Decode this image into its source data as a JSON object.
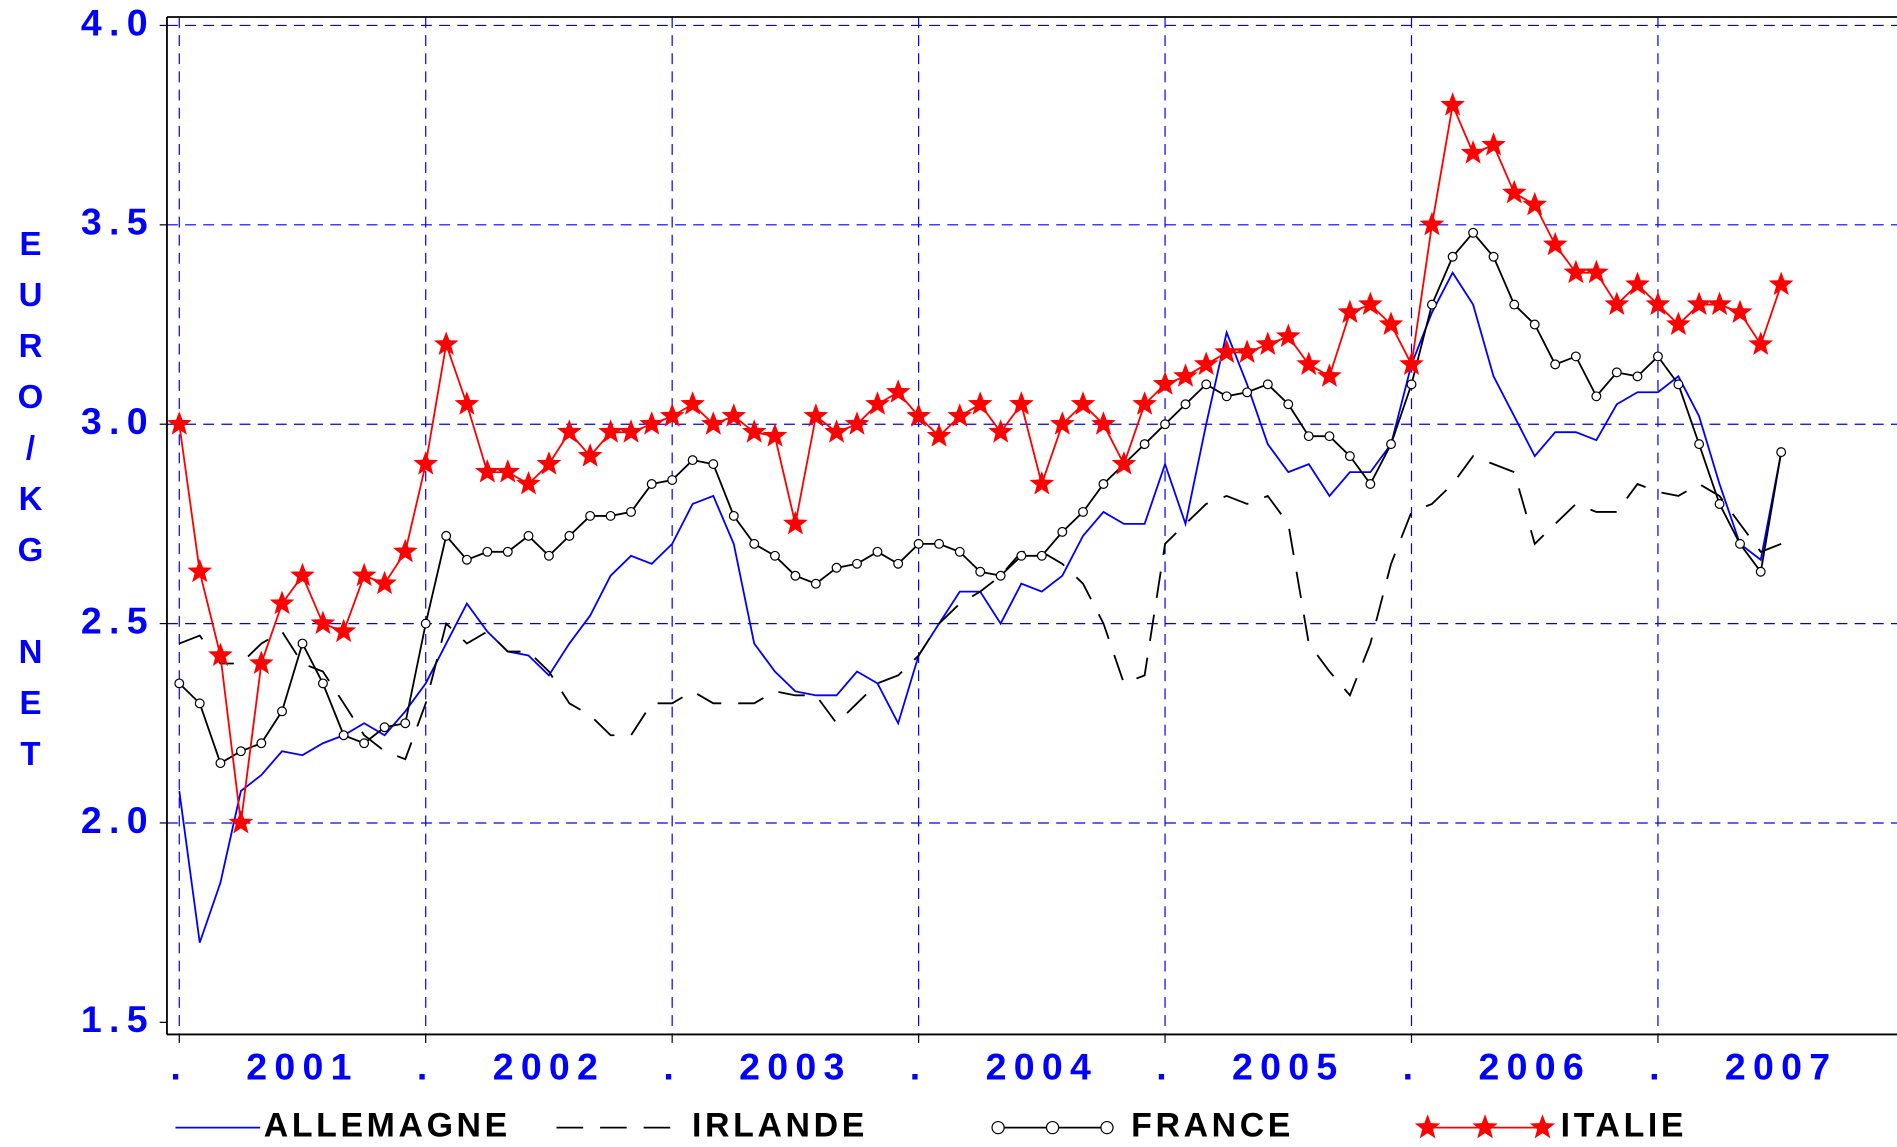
{
  "chart_data": {
    "type": "line",
    "ylabel": "EURO/KG NET",
    "x": [
      2001.0,
      2001.083,
      2001.167,
      2001.25,
      2001.333,
      2001.417,
      2001.5,
      2001.583,
      2001.667,
      2001.75,
      2001.833,
      2001.917,
      2002.0,
      2002.083,
      2002.167,
      2002.25,
      2002.333,
      2002.417,
      2002.5,
      2002.583,
      2002.667,
      2002.75,
      2002.833,
      2002.917,
      2003.0,
      2003.083,
      2003.167,
      2003.25,
      2003.333,
      2003.417,
      2003.5,
      2003.583,
      2003.667,
      2003.75,
      2003.833,
      2003.917,
      2004.0,
      2004.083,
      2004.167,
      2004.25,
      2004.333,
      2004.417,
      2004.5,
      2004.583,
      2004.667,
      2004.75,
      2004.833,
      2004.917,
      2005.0,
      2005.083,
      2005.167,
      2005.25,
      2005.333,
      2005.417,
      2005.5,
      2005.583,
      2005.667,
      2005.75,
      2005.833,
      2005.917,
      2006.0,
      2006.083,
      2006.167,
      2006.25,
      2006.333,
      2006.417,
      2006.5,
      2006.583,
      2006.667,
      2006.75,
      2006.833,
      2006.917,
      2007.0,
      2007.083,
      2007.167,
      2007.25,
      2007.333,
      2007.417,
      2007.5
    ],
    "series": [
      {
        "name": "ALLEMAGNE",
        "color": "#0000ff",
        "dash": "solid",
        "marker": "none",
        "values": [
          2.08,
          1.7,
          1.85,
          2.08,
          2.12,
          2.18,
          2.17,
          2.2,
          2.22,
          2.25,
          2.22,
          2.28,
          2.35,
          2.45,
          2.55,
          2.48,
          2.43,
          2.42,
          2.37,
          2.45,
          2.52,
          2.62,
          2.67,
          2.65,
          2.7,
          2.8,
          2.82,
          2.7,
          2.45,
          2.38,
          2.33,
          2.32,
          2.32,
          2.38,
          2.35,
          2.25,
          2.42,
          2.5,
          2.58,
          2.58,
          2.5,
          2.6,
          2.58,
          2.62,
          2.72,
          2.78,
          2.75,
          2.75,
          2.9,
          2.75,
          3.0,
          3.23,
          3.1,
          2.95,
          2.88,
          2.9,
          2.82,
          2.88,
          2.88,
          2.95,
          3.15,
          3.28,
          3.38,
          3.3,
          3.12,
          3.02,
          2.92,
          2.98,
          2.98,
          2.96,
          3.05,
          3.08,
          3.08,
          3.12,
          3.02,
          2.85,
          2.7,
          2.66,
          2.93
        ]
      },
      {
        "name": "IRLANDE",
        "color": "#000000",
        "dash": "dashed",
        "marker": "none",
        "values": [
          2.45,
          2.47,
          2.4,
          2.4,
          2.45,
          2.48,
          2.4,
          2.38,
          2.3,
          2.22,
          2.18,
          2.16,
          2.3,
          2.5,
          2.45,
          2.48,
          2.43,
          2.43,
          2.38,
          2.3,
          2.27,
          2.22,
          2.22,
          2.3,
          2.3,
          2.33,
          2.3,
          2.3,
          2.3,
          2.33,
          2.32,
          2.32,
          2.25,
          2.3,
          2.35,
          2.37,
          2.42,
          2.5,
          2.55,
          2.58,
          2.62,
          2.68,
          2.68,
          2.65,
          2.6,
          2.5,
          2.35,
          2.37,
          2.7,
          2.75,
          2.8,
          2.82,
          2.8,
          2.82,
          2.75,
          2.45,
          2.38,
          2.32,
          2.45,
          2.65,
          2.78,
          2.8,
          2.85,
          2.92,
          2.9,
          2.88,
          2.7,
          2.75,
          2.8,
          2.78,
          2.78,
          2.85,
          2.83,
          2.82,
          2.85,
          2.82,
          2.75,
          2.68,
          2.7
        ]
      },
      {
        "name": "FRANCE",
        "color": "#000000",
        "dash": "solid",
        "marker": "circle",
        "values": [
          2.35,
          2.3,
          2.15,
          2.18,
          2.2,
          2.28,
          2.45,
          2.35,
          2.22,
          2.2,
          2.24,
          2.25,
          2.5,
          2.72,
          2.66,
          2.68,
          2.68,
          2.72,
          2.67,
          2.72,
          2.77,
          2.77,
          2.78,
          2.85,
          2.86,
          2.91,
          2.9,
          2.77,
          2.7,
          2.67,
          2.62,
          2.6,
          2.64,
          2.65,
          2.68,
          2.65,
          2.7,
          2.7,
          2.68,
          2.63,
          2.62,
          2.67,
          2.67,
          2.73,
          2.78,
          2.85,
          2.9,
          2.95,
          3.0,
          3.05,
          3.1,
          3.07,
          3.08,
          3.1,
          3.05,
          2.97,
          2.97,
          2.92,
          2.85,
          2.95,
          3.1,
          3.3,
          3.42,
          3.48,
          3.42,
          3.3,
          3.25,
          3.15,
          3.17,
          3.07,
          3.13,
          3.12,
          3.17,
          3.1,
          2.95,
          2.8,
          2.7,
          2.63,
          2.93
        ]
      },
      {
        "name": "ITALIE",
        "color": "#ff0000",
        "dash": "solid",
        "marker": "star",
        "values": [
          3.0,
          2.63,
          2.42,
          2.0,
          2.4,
          2.55,
          2.62,
          2.5,
          2.48,
          2.62,
          2.6,
          2.68,
          2.9,
          3.2,
          3.05,
          2.88,
          2.88,
          2.85,
          2.9,
          2.98,
          2.92,
          2.98,
          2.98,
          3.0,
          3.02,
          3.05,
          3.0,
          3.02,
          2.98,
          2.97,
          2.75,
          3.02,
          2.98,
          3.0,
          3.05,
          3.08,
          3.02,
          2.97,
          3.02,
          3.05,
          2.98,
          3.05,
          2.85,
          3.0,
          3.05,
          3.0,
          2.9,
          3.05,
          3.1,
          3.12,
          3.15,
          3.18,
          3.18,
          3.2,
          3.22,
          3.15,
          3.12,
          3.28,
          3.3,
          3.25,
          3.15,
          3.5,
          3.8,
          3.68,
          3.7,
          3.58,
          3.55,
          3.45,
          3.38,
          3.38,
          3.3,
          3.35,
          3.3,
          3.25,
          3.3,
          3.3,
          3.28,
          3.2,
          3.35
        ]
      }
    ],
    "xlim": [
      2000.95,
      2007.97
    ],
    "xticks": [
      {
        "value": 2001,
        "label": "."
      },
      {
        "value": 2002,
        "label": "."
      },
      {
        "value": 2003,
        "label": "."
      },
      {
        "value": 2004,
        "label": "."
      },
      {
        "value": 2005,
        "label": "."
      },
      {
        "value": 2006,
        "label": "."
      },
      {
        "value": 2007,
        "label": "."
      }
    ],
    "xlabels": [
      {
        "value": 2001.5,
        "label": "2001"
      },
      {
        "value": 2002.5,
        "label": "2002"
      },
      {
        "value": 2003.5,
        "label": "2003"
      },
      {
        "value": 2004.5,
        "label": "2004"
      },
      {
        "value": 2005.5,
        "label": "2005"
      },
      {
        "value": 2006.5,
        "label": "2006"
      },
      {
        "value": 2007.5,
        "label": "2007"
      }
    ],
    "ylim": [
      1.5,
      4.0
    ],
    "yticks": [
      {
        "value": 1.5,
        "label": "1.5"
      },
      {
        "value": 2,
        "label": "2.0"
      },
      {
        "value": 2.5,
        "label": "2.5"
      },
      {
        "value": 3,
        "label": "3.0"
      },
      {
        "value": 3.5,
        "label": "3.5"
      },
      {
        "value": 4,
        "label": "4.0"
      }
    ],
    "grid": true,
    "grid_color": "#0000ff",
    "label_color": "#0000ff",
    "legend": "bottom"
  }
}
